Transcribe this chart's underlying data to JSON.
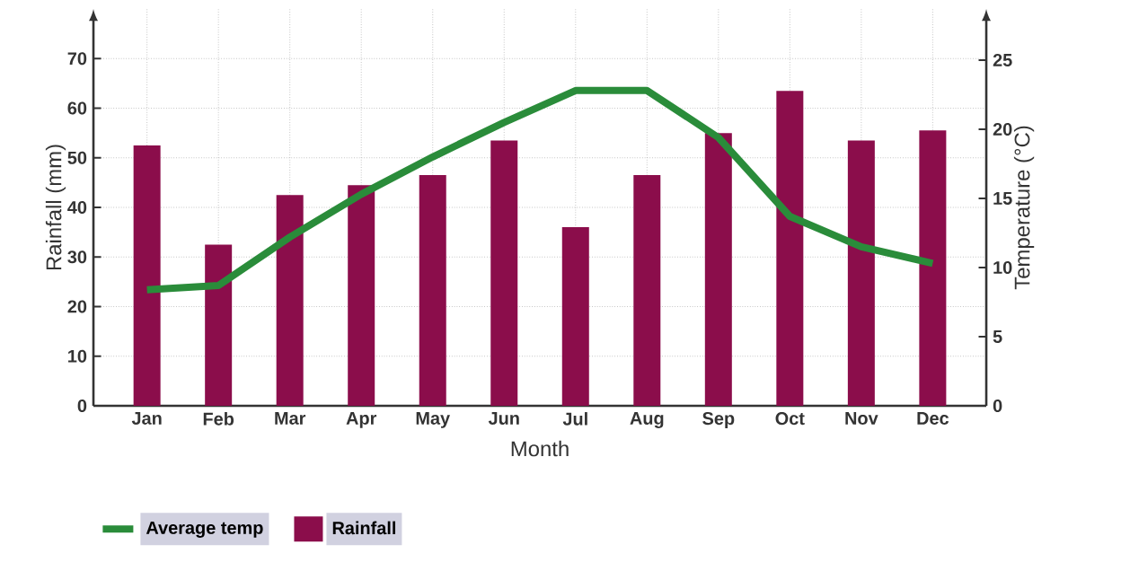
{
  "chart_data": {
    "type": "bar",
    "xlabel": "Month",
    "ylabel": "Rainfall (mm)",
    "y2label": "Temperature (°C)",
    "categories": [
      "Jan",
      "Feb",
      "Mar",
      "Apr",
      "May",
      "Jun",
      "Jul",
      "Aug",
      "Sep",
      "Oct",
      "Nov",
      "Dec"
    ],
    "series": [
      {
        "name": "Average temp",
        "type": "line",
        "axis": "y2",
        "color": "#2a8c3a",
        "values": [
          8.4,
          8.7,
          12.2,
          15.3,
          18.0,
          20.5,
          22.8,
          22.8,
          19.4,
          13.7,
          11.5,
          10.3
        ]
      },
      {
        "name": "Rainfall",
        "color": "#8b0d4b",
        "values": [
          52.5,
          32.5,
          42.5,
          44.5,
          46.5,
          53.5,
          36,
          46.5,
          55,
          63.5,
          53.5,
          55.5
        ]
      }
    ],
    "ylim": [
      0,
      80
    ],
    "yticks": [
      0,
      10,
      20,
      30,
      40,
      50,
      60,
      70
    ],
    "y2lim": [
      0,
      28.7
    ],
    "y2ticks": [
      0,
      5,
      10,
      15,
      20,
      25
    ],
    "grid": true,
    "legend": "bottom left",
    "marker": "none",
    "line_style": "solid"
  }
}
